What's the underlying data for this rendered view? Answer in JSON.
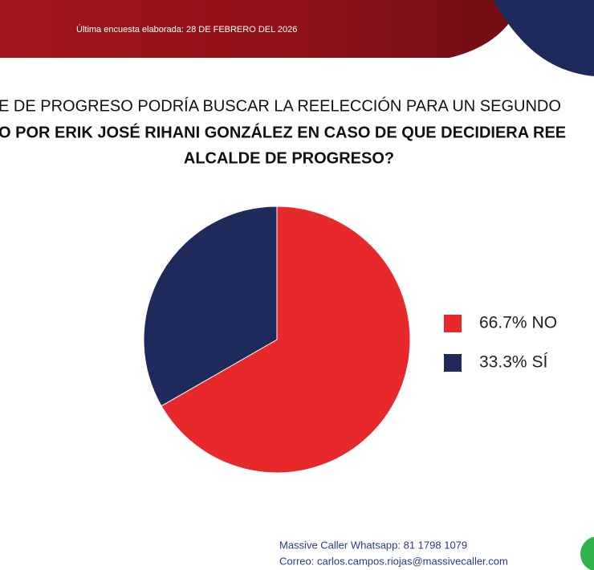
{
  "header": {
    "survey_date": "Última encuesta elaborada: 28 DE FEBRERO DEL 2026"
  },
  "chart_data": {
    "type": "pie",
    "title_lines": [
      "E DE PROGRESO PODRÍA BUSCAR LA REELECCIÓN PARA UN SEGUNDO",
      "O POR ERIK JOSÉ RIHANI GONZÁLEZ EN CASO DE QUE DECIDIERA REE",
      "ALCALDE DE PROGRESO?"
    ],
    "categories": [
      "NO",
      "SÍ"
    ],
    "values": [
      66.7,
      33.3
    ],
    "value_labels": [
      "66.7%",
      "33.3%"
    ],
    "colors": [
      "#e8292c",
      "#1f2a5c"
    ]
  },
  "footer": {
    "whatsapp": "Massive Caller Whatsapp: 81 1798 1079",
    "email": "Correo: carlos.campos.riojas@massivecaller.com"
  }
}
